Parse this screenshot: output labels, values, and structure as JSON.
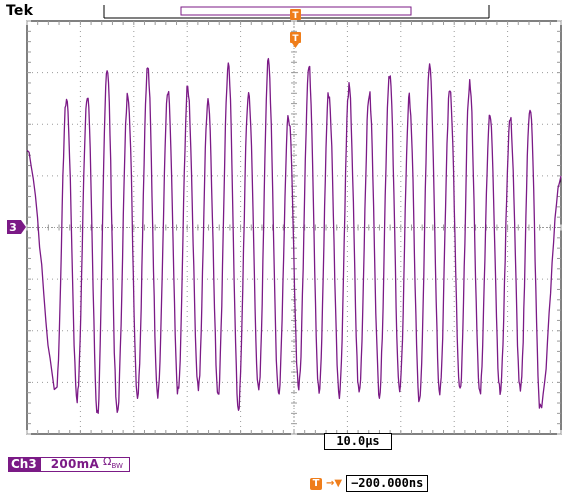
{
  "header": {
    "brand": "Tek"
  },
  "channel": {
    "name": "Ch3",
    "marker_label": "3",
    "scale": "200mA",
    "bandwidth_icon": "Ω",
    "bandwidth_sub": "BW",
    "color": "#7b1a86"
  },
  "timebase": {
    "value": "10.0µs"
  },
  "trigger": {
    "icon_label": "T",
    "arrow": "→▼",
    "position_value": "−200.000ns",
    "color": "#ef7d1a"
  },
  "colors": {
    "grid": "#9a9a9a",
    "trace": "#7b1a86",
    "trigger": "#ef7d1a"
  },
  "chart_data": {
    "type": "line",
    "title": "",
    "xlabel": "",
    "ylabel": "",
    "grid": true,
    "x_divisions": 10,
    "y_divisions": 8,
    "xlim": [
      -50,
      50
    ],
    "ylim": [
      -800,
      800
    ],
    "x_units": "µs",
    "y_units": "mA",
    "series": [
      {
        "peak_times_us": [
          -42.6,
          -38.7,
          -35.0,
          -31.1,
          -27.4,
          -23.6,
          -19.9,
          -16.1,
          -12.3,
          -8.5,
          -4.8,
          -1.0,
          2.8,
          6.5,
          10.3,
          14.1,
          17.9,
          21.6,
          25.4,
          29.2,
          32.9,
          36.7,
          40.5,
          44.2
        ],
        "peak_values_mA": [
          500,
          520,
          620,
          520,
          620,
          520,
          540,
          500,
          620,
          520,
          640,
          430,
          620,
          520,
          540,
          520,
          600,
          500,
          640,
          540,
          560,
          430,
          420,
          470
        ],
        "trough_times_us": [
          -44.5,
          -40.6,
          -36.8,
          -33.1,
          -29.3,
          -25.5,
          -21.7,
          -17.9,
          -14.2,
          -10.4,
          -6.6,
          -2.9,
          0.9,
          4.7,
          8.5,
          12.2,
          16.0,
          19.8,
          23.5,
          27.3,
          31.1,
          34.8,
          38.6,
          42.4,
          46.1
        ],
        "trough_values_mA": [
          -620,
          -660,
          -720,
          -720,
          -650,
          -640,
          -640,
          -620,
          -640,
          -700,
          -640,
          -640,
          -620,
          -640,
          -640,
          -640,
          -640,
          -640,
          -680,
          -630,
          -640,
          -640,
          -640,
          -640,
          -700
        ]
      }
    ]
  }
}
